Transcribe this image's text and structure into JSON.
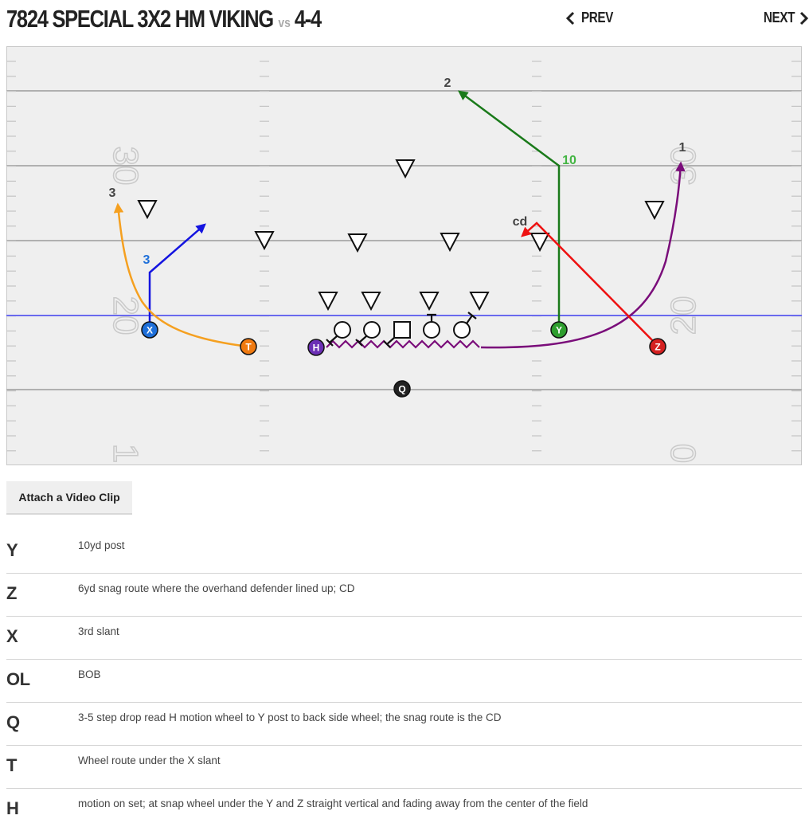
{
  "header": {
    "play_name": "7824 SPECIAL 3X2 HM VIKING",
    "vs_label": "vs",
    "defense": "4-4",
    "prev_label": "PREV",
    "next_label": "NEXT"
  },
  "field": {
    "yard_markers": {
      "left": [
        "30",
        "20",
        "1"
      ],
      "right": [
        "30",
        "20",
        "0"
      ]
    },
    "players": [
      {
        "id": "X",
        "color": "#1e6fd9"
      },
      {
        "id": "T",
        "color": "#f07a10"
      },
      {
        "id": "H",
        "color": "#6b2fb5"
      },
      {
        "id": "Q",
        "color": "#222222"
      },
      {
        "id": "Y",
        "color": "#2e9e2e"
      },
      {
        "id": "Z",
        "color": "#d42020"
      }
    ],
    "route_labels": [
      {
        "text": "2",
        "color": "#444444"
      },
      {
        "text": "10",
        "color": "#44b544"
      },
      {
        "text": "1",
        "color": "#444444"
      },
      {
        "text": "3",
        "color": "#444444"
      },
      {
        "text": "3",
        "color": "#1e6fd9"
      },
      {
        "text": "cd",
        "color": "#444444"
      }
    ],
    "route_colors": {
      "Y": "#1a7a1a",
      "Z": "#ee1111",
      "X": "#1414e0",
      "T": "#f5a020",
      "H": "#7a0d7a"
    }
  },
  "attach_button": "Attach a Video Clip",
  "notes": [
    {
      "pos": "Y",
      "text": "10yd post"
    },
    {
      "pos": "Z",
      "text": "6yd snag route where the overhand defender lined up; CD"
    },
    {
      "pos": "X",
      "text": "3rd slant"
    },
    {
      "pos": "OL",
      "text": "BOB"
    },
    {
      "pos": "Q",
      "text": "3-5 step drop read H motion wheel to Y post to back side wheel; the snag route is the CD"
    },
    {
      "pos": "T",
      "text": "Wheel route under the X slant"
    },
    {
      "pos": "H",
      "text": "motion on set; at snap wheel under the Y and Z straight vertical and fading away from the center of the field"
    }
  ]
}
